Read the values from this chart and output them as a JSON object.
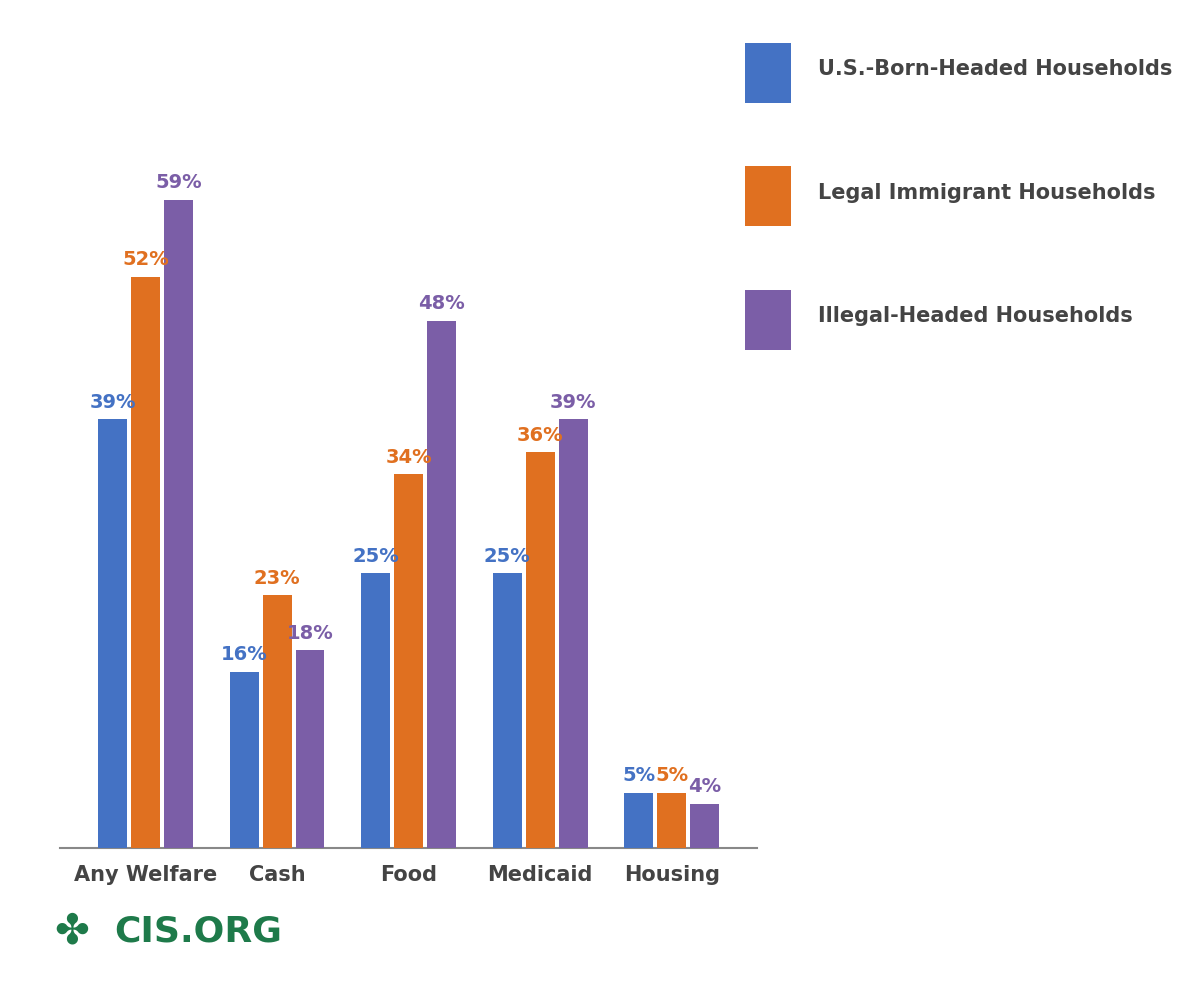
{
  "categories": [
    "Any Welfare",
    "Cash",
    "Food",
    "Medicaid",
    "Housing"
  ],
  "series": {
    "US-Born": [
      39,
      16,
      25,
      25,
      5
    ],
    "Legal": [
      52,
      23,
      34,
      36,
      5
    ],
    "Illegal": [
      59,
      18,
      48,
      39,
      4
    ]
  },
  "colors": {
    "US-Born": "#4472C4",
    "Legal": "#E07020",
    "Illegal": "#7B5EA7"
  },
  "legend_labels": [
    "U.S.-Born-Headed Households",
    "Legal Immigrant Households",
    "Illegal-Headed Households"
  ],
  "legend_colors": [
    "#4472C4",
    "#E07020",
    "#7B5EA7"
  ],
  "label_colors": {
    "US-Born": "#4472C4",
    "Legal": "#E07020",
    "Illegal": "#7B5EA7"
  },
  "bar_width": 0.22,
  "ylim": [
    0,
    70
  ],
  "figsize": [
    12.02,
    9.86
  ],
  "dpi": 100,
  "background_color": "#FFFFFF",
  "cis_text": "CIS.ORG",
  "cis_color": "#1E7A4A",
  "xlabel_fontsize": 15,
  "label_fontsize": 14,
  "legend_fontsize": 15
}
